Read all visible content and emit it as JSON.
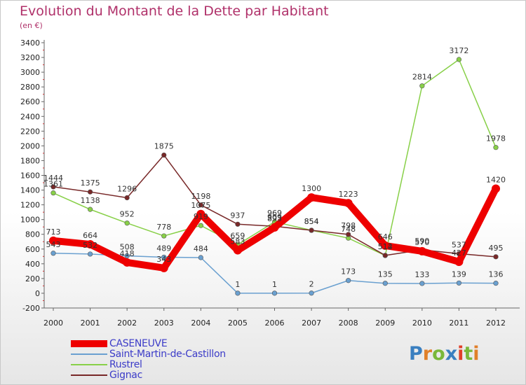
{
  "title": "Evolution du Montant de la Dette par Habitant",
  "subtitle": "(en €)",
  "brand": {
    "text": "Proxiti",
    "letter_colors": [
      "#3a7fc0",
      "#e0802a",
      "#7ab83a",
      "#3a7fc0",
      "#e0402a",
      "#7ab83a",
      "#e0802a"
    ]
  },
  "chart_data": {
    "type": "line",
    "categories": [
      "2000",
      "2001",
      "2002",
      "2003",
      "2004",
      "2005",
      "2006",
      "2007",
      "2008",
      "2009",
      "2010",
      "2011",
      "2012"
    ],
    "ylim": [
      -200,
      3400
    ],
    "yticks": [
      -200,
      0,
      200,
      400,
      600,
      800,
      1000,
      1200,
      1400,
      1600,
      1800,
      2000,
      2200,
      2400,
      2600,
      2800,
      3000,
      3200,
      3400
    ],
    "grid": false,
    "legend_position": "bottom-left",
    "series": [
      {
        "name": "CASENEUVE",
        "color": "#ee0000",
        "width": 10,
        "values": [
          713,
          664,
          418,
          343,
          1075,
          583,
          893,
          1300,
          1223,
          646,
          570,
          427,
          1420
        ],
        "labels": [
          "713",
          "664",
          "418",
          "343",
          "1075",
          "583",
          "893",
          "1300",
          "1223",
          "646",
          "570",
          "427",
          "1420"
        ]
      },
      {
        "name": "Saint-Martin-de-Castillon",
        "color": "#6aa0d0",
        "width": 1.5,
        "values": [
          543,
          532,
          508,
          489,
          484,
          1,
          1,
          2,
          173,
          135,
          133,
          139,
          136
        ],
        "labels": [
          "543",
          "532",
          "508",
          "489",
          "484",
          "1",
          "1",
          "2",
          "173",
          "135",
          "133",
          "139",
          "136"
        ]
      },
      {
        "name": "Rustrel",
        "color": "#88d048",
        "width": 1.5,
        "values": [
          1361,
          1138,
          952,
          778,
          919,
          659,
          969,
          854,
          748,
          512,
          2814,
          3172,
          1978
        ],
        "labels": [
          "1361",
          "1138",
          "952",
          "778",
          "919",
          "659",
          "969",
          "854",
          "748",
          "512",
          "2814",
          "3172",
          "1978"
        ]
      },
      {
        "name": "Gignac",
        "color": "#782828",
        "width": 1.5,
        "values": [
          1444,
          1375,
          1296,
          1875,
          1198,
          937,
          909,
          854,
          798,
          514,
          590,
          537,
          495
        ],
        "labels": [
          "1444",
          "1375",
          "1296",
          "1875",
          "1198",
          "937",
          "909",
          "854",
          "798",
          "514",
          "590",
          "537",
          "495"
        ]
      }
    ]
  }
}
